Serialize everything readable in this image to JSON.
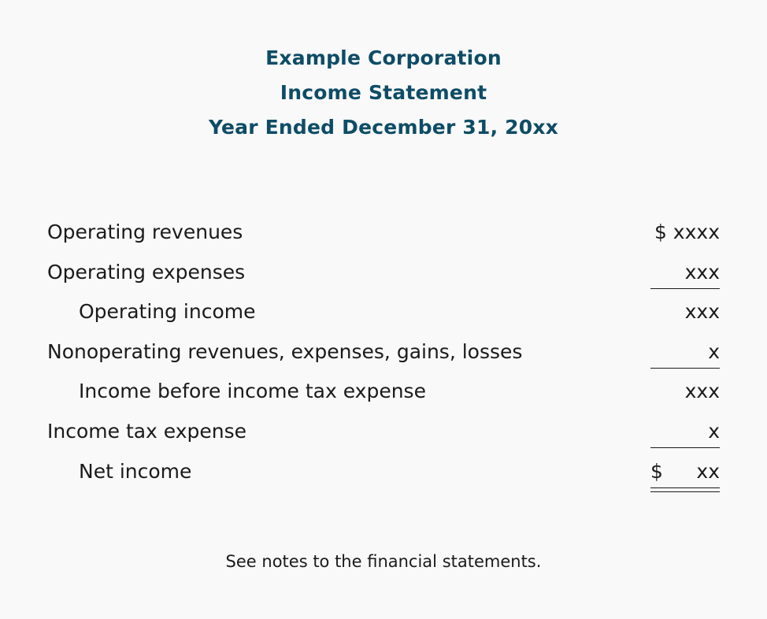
{
  "header": {
    "company": "Example Corporation",
    "statement": "Income Statement",
    "period": "Year Ended December 31, 20xx"
  },
  "rows": [
    {
      "label": "Operating revenues",
      "amount": "$ xxxx"
    },
    {
      "label": "Operating expenses",
      "amount": "xxx"
    },
    {
      "label": "Operating income",
      "amount": "xxx"
    },
    {
      "label": "Nonoperating revenues, expenses, gains, losses",
      "amount": "x"
    },
    {
      "label": "Income before income tax expense",
      "amount": "xxx"
    },
    {
      "label": "Income tax expense",
      "amount": "x"
    },
    {
      "label": "Net income",
      "currency": "$",
      "amount": "xx"
    }
  ],
  "footer": {
    "note": "See notes to the financial statements."
  }
}
